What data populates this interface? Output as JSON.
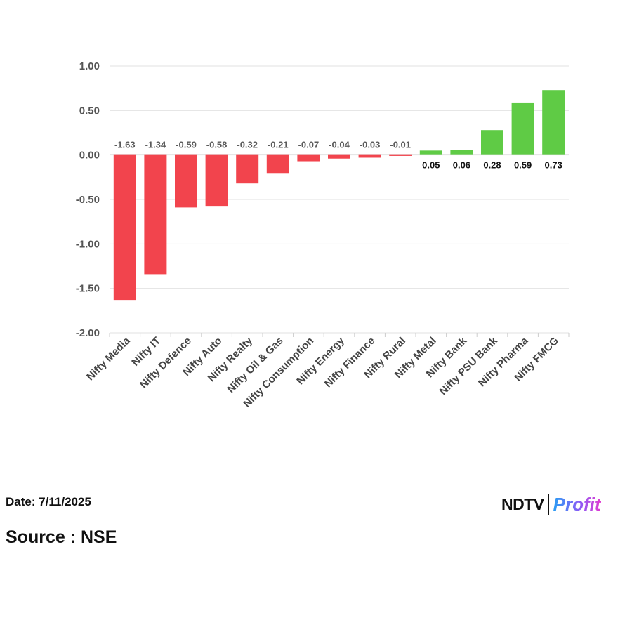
{
  "chart_data": {
    "type": "bar",
    "title": "",
    "xlabel": "",
    "ylabel": "",
    "categories": [
      "Nifty Media",
      "Nifty IT",
      "Nifty Defence",
      "Nifty Auto",
      "Nifty Realty",
      "Nifty Oil & Gas",
      "Nifty Consumption",
      "Nifty Energy",
      "Nifty Finance",
      "Nifty Rural",
      "Nifty Metal",
      "Nifty Bank",
      "Nifty PSU Bank",
      "Nifty Pharma",
      "Nifty FMCG"
    ],
    "values": [
      -1.63,
      -1.34,
      -0.59,
      -0.58,
      -0.32,
      -0.21,
      -0.07,
      -0.04,
      -0.03,
      -0.01,
      0.05,
      0.06,
      0.28,
      0.59,
      0.73
    ],
    "data_labels": [
      "-1.63",
      "-1.34",
      "-0.59",
      "-0.58",
      "-0.32",
      "-0.21",
      "-0.07",
      "-0.04",
      "-0.03",
      "-0.01",
      "0.05",
      "0.06",
      "0.28",
      "0.59",
      "0.73"
    ],
    "ylim": [
      -2.0,
      1.0
    ],
    "yticks": [
      1.0,
      0.5,
      0.0,
      -0.5,
      -1.0,
      -1.5,
      -2.0
    ],
    "ytick_labels": [
      "1.00",
      "0.50",
      "0.00",
      "-0.50",
      "-1.00",
      "-1.50",
      "-2.00"
    ],
    "grid": true,
    "colors": {
      "negative": "#f2444d",
      "positive": "#5fcb45",
      "grid": "#e2e2e2",
      "negative_label": "#5a5a5a",
      "positive_label": "#111111"
    }
  },
  "footer": {
    "date_label": "Date: 7/11/2025",
    "source_label": "Source : NSE",
    "logo_ndtv": "NDTV",
    "logo_profit": "Profit"
  }
}
